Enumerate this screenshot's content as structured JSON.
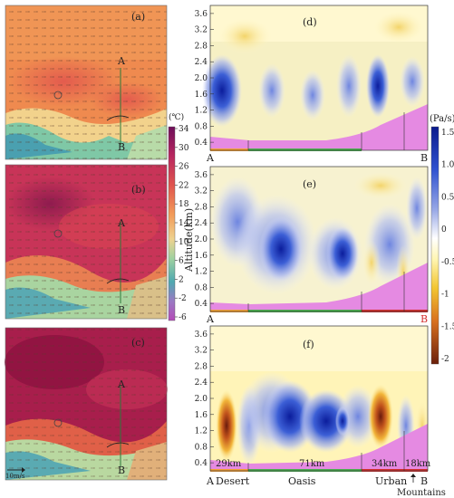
{
  "chart_data": [
    {
      "type": "heatmap",
      "panel_label": "(a)",
      "variable": "temperature_map",
      "point_labels": [
        "A",
        "B"
      ],
      "wind_scale_label": "",
      "colorbar": {
        "unit_label": "(℃)",
        "ticks": [
          34,
          30,
          26,
          22,
          18,
          14,
          10,
          6,
          2,
          -2,
          -6
        ],
        "range": [
          -6,
          34
        ],
        "colors": [
          "#6e0f5a",
          "#a41e63",
          "#c9305a",
          "#e0544e",
          "#ee7f4e",
          "#f4a55b",
          "#e8c77e",
          "#a8cf9a",
          "#58b7a8",
          "#2f7fa8",
          "#6a4aa5"
        ]
      }
    },
    {
      "type": "heatmap",
      "panel_label": "(b)",
      "variable": "temperature_map",
      "point_labels": [
        "A",
        "B"
      ]
    },
    {
      "type": "heatmap",
      "panel_label": "(c)",
      "variable": "temperature_map",
      "point_labels": [
        "A",
        "B"
      ],
      "wind_scale_label": "10m/s"
    },
    {
      "type": "heatmap",
      "panel_label": "(d)",
      "variable": "vertical_velocity_cross_section",
      "ylabel": "",
      "yticks": [
        0.4,
        0.8,
        1.2,
        1.6,
        2.0,
        2.4,
        2.8,
        3.2,
        3.6
      ],
      "ylim": [
        0.2,
        3.8
      ],
      "end_labels": [
        "A",
        "B"
      ],
      "colorbar": {
        "unit_label": "(Pa/s)",
        "ticks": [
          "1.5",
          "1.0",
          "0.5",
          "0",
          "-0.5",
          "-1",
          "-1.5",
          "-2"
        ],
        "range": [
          -2,
          1.5
        ]
      }
    },
    {
      "type": "heatmap",
      "panel_label": "(e)",
      "variable": "vertical_velocity_cross_section",
      "ylabel": "Altitude(km)",
      "yticks": [
        0.4,
        0.8,
        1.2,
        1.6,
        2.0,
        2.4,
        2.8,
        3.2,
        3.6
      ],
      "ylim": [
        0.2,
        3.8
      ],
      "end_labels": [
        "A",
        "B"
      ]
    },
    {
      "type": "heatmap",
      "panel_label": "(f)",
      "variable": "vertical_velocity_cross_section",
      "ylabel": "",
      "yticks": [
        0.4,
        0.8,
        1.2,
        1.6,
        2.0,
        2.4,
        2.8,
        3.2,
        3.6
      ],
      "ylim": [
        0.2,
        3.8
      ],
      "end_labels": [
        "A",
        "B"
      ],
      "segments": [
        {
          "name": "Desert",
          "length_label": "29km"
        },
        {
          "name": "Oasis",
          "length_label": "71km"
        },
        {
          "name": "Urban",
          "length_label": "34km"
        },
        {
          "name": "Mountains",
          "length_label": "18km"
        }
      ]
    }
  ]
}
